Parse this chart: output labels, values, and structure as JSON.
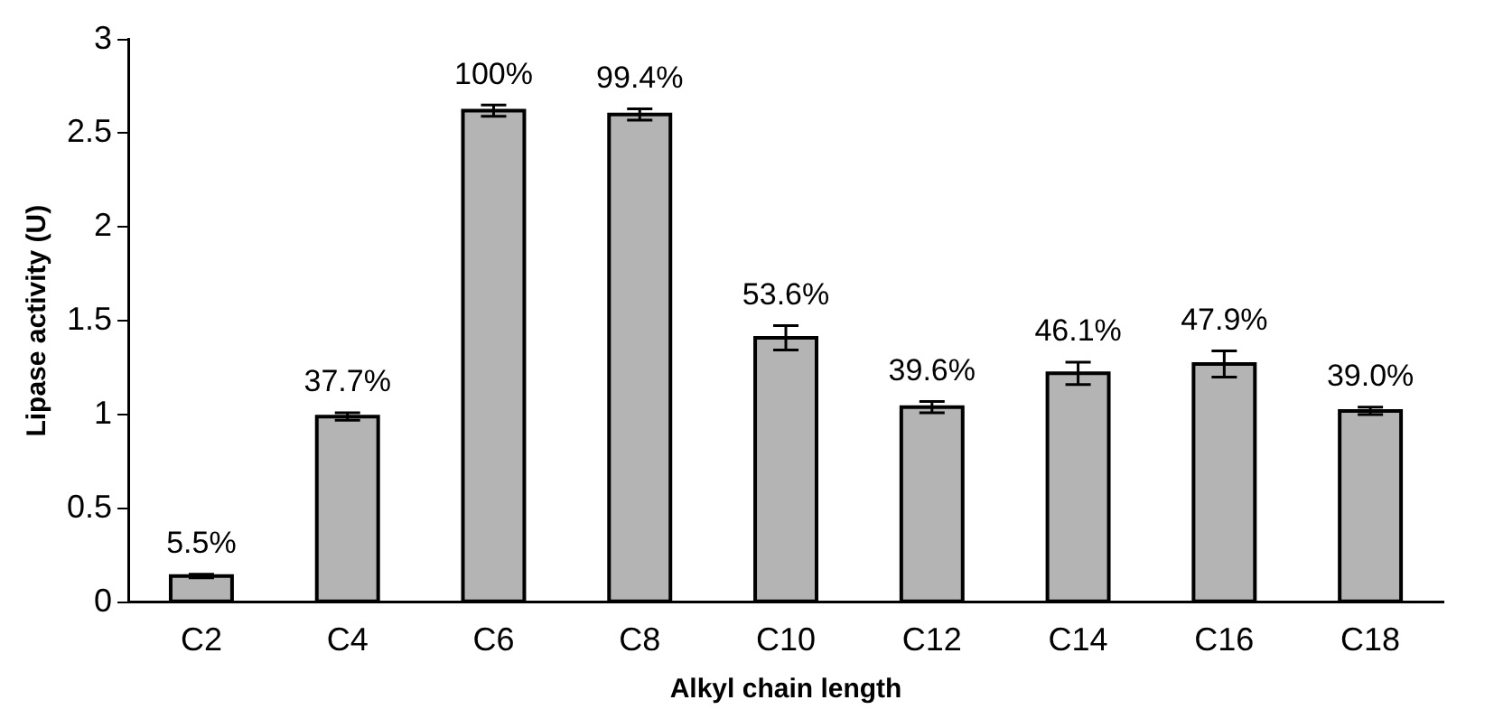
{
  "chart_data": {
    "type": "bar",
    "xlabel": "Alkyl chain length",
    "ylabel": "Lipase activity (U)",
    "categories": [
      "C2",
      "C4",
      "C6",
      "C8",
      "C10",
      "C12",
      "C14",
      "C16",
      "C18"
    ],
    "values": [
      0.14,
      0.99,
      2.62,
      2.6,
      1.41,
      1.04,
      1.22,
      1.27,
      1.02
    ],
    "errors": [
      0.01,
      0.02,
      0.03,
      0.03,
      0.065,
      0.03,
      0.06,
      0.07,
      0.02
    ],
    "annotations": [
      {
        "text": "5.5%",
        "x": "C2",
        "y": 0.14
      },
      {
        "text": "37.7%",
        "x": "C4",
        "y": 0.99
      },
      {
        "text": "100%",
        "x": "C6",
        "y": 2.62
      },
      {
        "text": "99.4%",
        "x": "C8",
        "y": 2.6
      },
      {
        "text": "53.6%",
        "x": "C10",
        "y": 1.41
      },
      {
        "text": "39.6%",
        "x": "C12",
        "y": 1.04
      },
      {
        "text": "46.1%",
        "x": "C14",
        "y": 1.22
      },
      {
        "text": "47.9%",
        "x": "C16",
        "y": 1.27
      },
      {
        "text": "39.0%",
        "x": "C18",
        "y": 1.02
      }
    ],
    "color": "#b4b4b4",
    "ylim": [
      0,
      3
    ],
    "yticks": [
      0,
      0.5,
      1,
      1.5,
      2,
      2.5,
      3
    ],
    "grid": false,
    "legend": false
  }
}
